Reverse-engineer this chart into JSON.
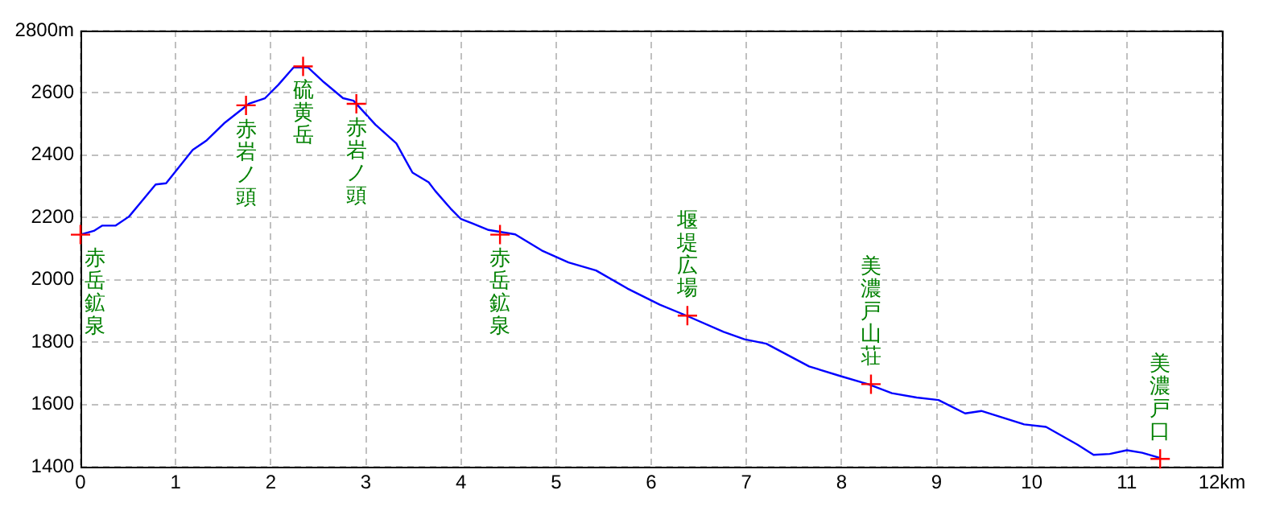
{
  "chart_data": {
    "type": "line",
    "x": [
      0,
      0.14,
      0.23,
      0.37,
      0.51,
      0.79,
      0.9,
      1.18,
      1.32,
      1.52,
      1.77,
      1.94,
      2.08,
      2.24,
      2.39,
      2.56,
      2.76,
      2.87,
      3.1,
      3.32,
      3.49,
      3.66,
      3.73,
      3.89,
      4.0,
      4.12,
      4.29,
      4.57,
      4.85,
      5.13,
      5.42,
      5.75,
      6.09,
      6.37,
      6.76,
      6.98,
      7.21,
      7.66,
      8.0,
      8.22,
      8.28,
      8.53,
      8.79,
      9.02,
      9.3,
      9.47,
      9.92,
      10.15,
      10.48,
      10.65,
      10.82,
      11.0,
      11.16,
      11.35
    ],
    "series": [
      {
        "color": "#0000ff",
        "values": [
          2145,
          2157,
          2174,
          2174,
          2203,
          2306,
          2310,
          2417,
          2446,
          2505,
          2565,
          2583,
          2626,
          2682,
          2682,
          2634,
          2583,
          2575,
          2498,
          2438,
          2344,
          2313,
          2285,
          2229,
          2195,
          2181,
          2160,
          2146,
          2094,
          2056,
          2030,
          1972,
          1920,
          1885,
          1833,
          1809,
          1795,
          1722,
          1690,
          1670,
          1665,
          1636,
          1622,
          1614,
          1571,
          1579,
          1536,
          1528,
          1471,
          1438,
          1441,
          1453,
          1445,
          1428
        ]
      }
    ],
    "xlim": [
      0,
      12
    ],
    "xticks": [
      0,
      1,
      2,
      3,
      4,
      5,
      6,
      7,
      8,
      9,
      10,
      11,
      {
        "value": 12,
        "label": "12km"
      }
    ],
    "ylim": [
      1400,
      2800
    ],
    "yticks": [
      1400,
      1600,
      1800,
      2000,
      2200,
      2400,
      2600,
      {
        "value": 2800,
        "label": "2800m"
      }
    ],
    "grid": true,
    "legend": false,
    "marker": "none",
    "line_style": "solid",
    "annotations": [
      {
        "text": "赤岳鉱泉",
        "x": 0,
        "y": 2145
      },
      {
        "text": "赤岩ノ頭",
        "x": 1.74,
        "y": 2560
      },
      {
        "text": "硫黄岳",
        "x": 2.34,
        "y": 2685
      },
      {
        "text": "赤岩ノ頭",
        "x": 2.9,
        "y": 2565
      },
      {
        "text": "赤岳鉱泉",
        "x": 4.41,
        "y": 2145
      },
      {
        "text": "堰堤広場",
        "x": 6.38,
        "y": 1885
      },
      {
        "text": "美濃戸山荘",
        "x": 8.31,
        "y": 1665
      },
      {
        "text": "美濃戸口",
        "x": 11.35,
        "y": 1425
      }
    ]
  }
}
